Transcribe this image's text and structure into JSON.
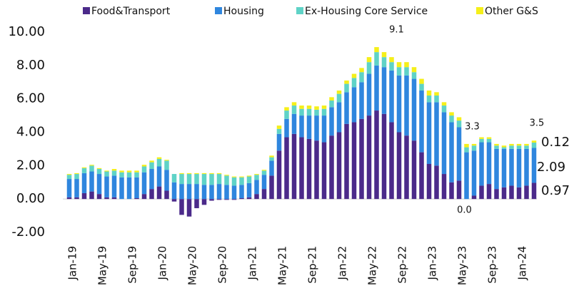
{
  "chart_data": {
    "type": "stacked-bar",
    "categories": [
      "Jan-19",
      null,
      null,
      null,
      "May-19",
      null,
      null,
      null,
      "Sep-19",
      null,
      null,
      null,
      "Jan-20",
      null,
      null,
      null,
      "May-20",
      null,
      null,
      null,
      "Sep-20",
      null,
      null,
      null,
      "Jan-21",
      null,
      null,
      null,
      "May-21",
      null,
      null,
      null,
      "Sep-21",
      null,
      null,
      null,
      "Jan-22",
      null,
      null,
      null,
      "May-22",
      null,
      null,
      null,
      "Sep-22",
      null,
      null,
      null,
      "Jan-23",
      null,
      null,
      null,
      "May-23",
      null,
      null,
      null,
      "Sep-23",
      null,
      null,
      null,
      "Jan-24",
      null,
      null
    ],
    "series": [
      {
        "name": "Food&Transport",
        "color": "#4b2a8a",
        "values": [
          0.1,
          0.1,
          0.35,
          0.45,
          0.3,
          0.1,
          0.1,
          0.0,
          0.0,
          0.05,
          0.3,
          0.6,
          0.75,
          0.5,
          -0.15,
          -0.95,
          -1.05,
          -0.55,
          -0.35,
          -0.1,
          -0.05,
          -0.05,
          -0.05,
          0.05,
          0.1,
          0.3,
          0.6,
          1.4,
          2.9,
          3.7,
          3.9,
          3.7,
          3.6,
          3.5,
          3.4,
          3.8,
          4.0,
          4.5,
          4.6,
          4.8,
          5.0,
          5.3,
          5.1,
          4.6,
          4.0,
          3.8,
          3.5,
          2.8,
          2.1,
          2.0,
          1.5,
          1.0,
          1.1,
          0.0,
          0.2,
          0.8,
          0.9,
          0.6,
          0.7,
          0.8,
          0.7,
          0.8,
          0.97
        ],
        "value_labels": [
          null,
          null,
          null,
          null,
          null,
          null,
          null,
          null,
          null,
          null,
          null,
          null,
          null,
          null,
          null,
          null,
          null,
          null,
          null,
          null,
          null,
          null,
          null,
          null,
          null,
          null,
          null,
          null,
          null,
          null,
          null,
          null,
          null,
          null,
          null,
          null,
          null,
          null,
          null,
          null,
          null,
          null,
          null,
          null,
          null,
          null,
          null,
          null,
          null,
          null,
          null,
          null,
          null,
          "0.0",
          null,
          null,
          null,
          null,
          null,
          null,
          null,
          null,
          null
        ]
      },
      {
        "name": "Housing",
        "color": "#2f86de",
        "values": [
          1.1,
          1.1,
          1.2,
          1.2,
          1.2,
          1.25,
          1.3,
          1.3,
          1.3,
          1.25,
          1.3,
          1.2,
          1.2,
          1.25,
          1.0,
          0.9,
          0.9,
          0.9,
          0.85,
          0.85,
          0.9,
          0.85,
          0.8,
          0.8,
          0.85,
          0.85,
          0.85,
          0.9,
          1.0,
          1.1,
          1.2,
          1.3,
          1.4,
          1.5,
          1.6,
          1.7,
          1.8,
          1.9,
          2.1,
          2.2,
          2.5,
          2.7,
          2.8,
          3.1,
          3.4,
          3.6,
          3.7,
          3.7,
          3.7,
          3.8,
          3.7,
          3.6,
          3.2,
          2.8,
          2.7,
          2.6,
          2.5,
          2.4,
          2.3,
          2.2,
          2.3,
          2.2,
          2.09
        ]
      },
      {
        "name": "Ex-Housing Core Service",
        "color": "#5fd3c7",
        "values": [
          0.25,
          0.3,
          0.3,
          0.35,
          0.3,
          0.3,
          0.3,
          0.3,
          0.3,
          0.3,
          0.35,
          0.4,
          0.45,
          0.55,
          0.5,
          0.6,
          0.6,
          0.6,
          0.65,
          0.65,
          0.6,
          0.55,
          0.5,
          0.45,
          0.4,
          0.3,
          0.25,
          0.2,
          0.3,
          0.5,
          0.5,
          0.4,
          0.4,
          0.35,
          0.4,
          0.4,
          0.5,
          0.5,
          0.55,
          0.6,
          0.7,
          0.8,
          0.6,
          0.5,
          0.5,
          0.5,
          0.4,
          0.4,
          0.4,
          0.4,
          0.4,
          0.4,
          0.4,
          0.3,
          0.3,
          0.2,
          0.2,
          0.2,
          0.1,
          0.2,
          0.2,
          0.2,
          0.32
        ]
      },
      {
        "name": "Other G&S",
        "color": "#f5ef1a",
        "values": [
          0.05,
          0.05,
          0.05,
          0.05,
          0.05,
          0.05,
          0.1,
          0.1,
          0.1,
          0.1,
          0.1,
          0.1,
          0.1,
          0.05,
          0.0,
          0.05,
          0.05,
          0.05,
          0.05,
          0.05,
          0.05,
          0.05,
          0.05,
          0.05,
          0.05,
          0.05,
          0.05,
          0.1,
          0.2,
          0.2,
          0.2,
          0.2,
          0.2,
          0.2,
          0.2,
          0.2,
          0.2,
          0.2,
          0.25,
          0.25,
          0.3,
          0.3,
          0.3,
          0.3,
          0.3,
          0.3,
          0.3,
          0.3,
          0.3,
          0.2,
          0.2,
          0.2,
          0.2,
          0.2,
          0.1,
          0.1,
          0.1,
          0.1,
          0.1,
          0.1,
          0.1,
          0.1,
          0.12
        ]
      }
    ],
    "annotations": [
      "9.1",
      "3.3",
      "3.5"
    ],
    "ylim": [
      -2,
      10
    ],
    "yticks": [
      {
        "value": -2,
        "label": "-2.00"
      },
      {
        "value": 0,
        "label": "0.00"
      },
      {
        "value": 2,
        "label": "2.00"
      },
      {
        "value": 4,
        "label": "4.00"
      },
      {
        "value": 6,
        "label": "6.00"
      },
      {
        "value": 8,
        "label": "8.00"
      },
      {
        "value": 10,
        "label": "10.00"
      }
    ],
    "grid": false,
    "legend": "top"
  }
}
